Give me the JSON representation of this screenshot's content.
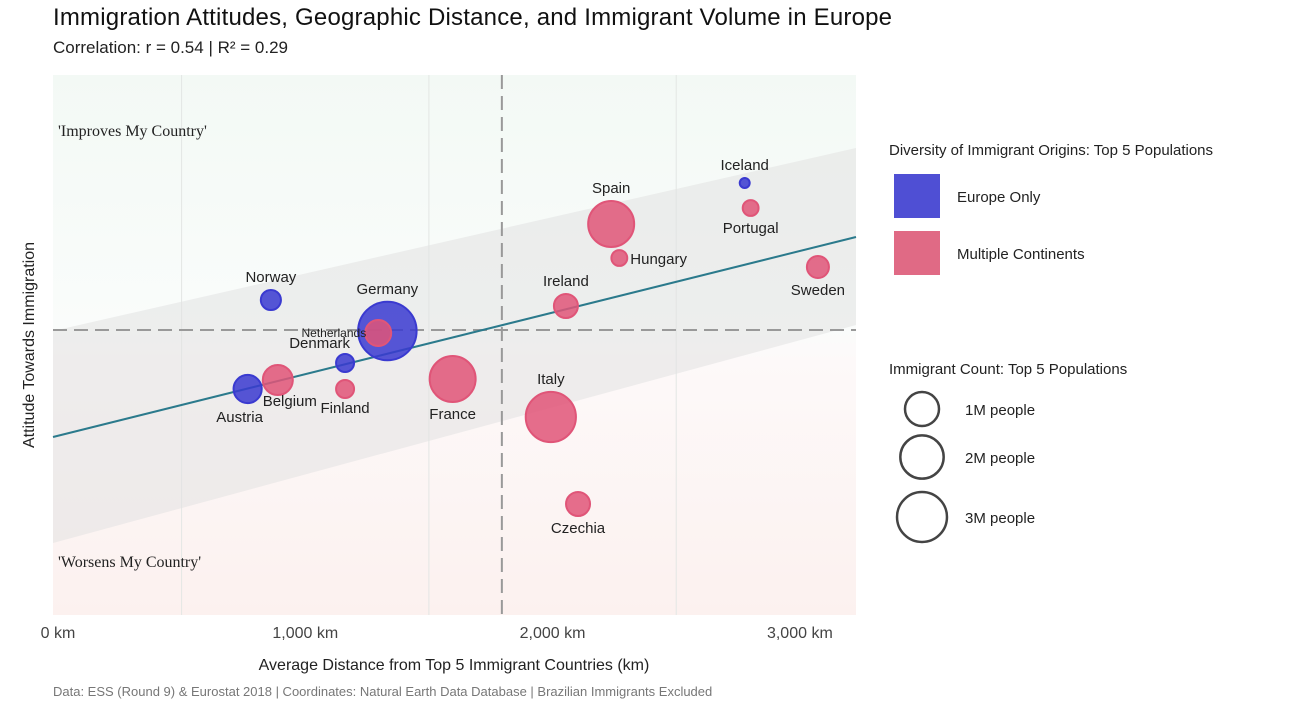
{
  "header": {
    "title": "Immigration Attitudes, Geographic Distance, and Immigrant Volume in Europe",
    "subtitle": "Correlation: r = 0.54 | R² = 0.29"
  },
  "chart_data": {
    "type": "scatter",
    "title": "Immigration Attitudes, Geographic Distance, and Immigrant Volume in Europe",
    "subtitle": "Correlation: r = 0.54 | R² = 0.29",
    "xlabel": "Average Distance from Top 5 Immigrant Countries (km)",
    "ylabel": "Attitude Towards Immigration",
    "xlim": [
      -20,
      3227
    ],
    "ylim": [
      -2.85,
      2.55
    ],
    "x_ticks": [
      {
        "value": 0,
        "label": "0 km"
      },
      {
        "value": 1000,
        "label": "1,000 km"
      },
      {
        "value": 2000,
        "label": "2,000 km"
      },
      {
        "value": 3000,
        "label": "3,000 km"
      }
    ],
    "x_minor_grid": [
      500,
      1500,
      2500
    ],
    "grid": true,
    "reference_lines": {
      "x_mean": 1795,
      "y_mean": 0
    },
    "quadrant_labels": {
      "top": "'Improves My Country'",
      "bottom": "'Worsens My Country'"
    },
    "regression": {
      "x": [
        -20,
        3227
      ],
      "y": [
        -1.07,
        0.93
      ],
      "ci_lower": [
        -2.13,
        0.05
      ],
      "ci_upper": [
        -0.01,
        1.82
      ],
      "color": "#2b7a8c"
    },
    "groups": {
      "europe": {
        "label": "Europe Only",
        "color": "#3a3ad0"
      },
      "multi": {
        "label": "Multiple Continents",
        "color": "#e05578"
      }
    },
    "points": [
      {
        "country": "Norway",
        "x": 861,
        "y": 0.3,
        "size_m": 0.45,
        "group": "europe",
        "label_pos": "top"
      },
      {
        "country": "Germany",
        "x": 1332,
        "y": -0.01,
        "size_m": 3.8,
        "group": "europe",
        "label_pos": "top"
      },
      {
        "country": "Netherlands",
        "x": 1295,
        "y": -0.03,
        "size_m": 0.75,
        "group": "multi",
        "label_pos": "left-small"
      },
      {
        "country": "Denmark",
        "x": 1161,
        "y": -0.33,
        "size_m": 0.36,
        "group": "europe",
        "label_pos": "top-left"
      },
      {
        "country": "Austria",
        "x": 767,
        "y": -0.59,
        "size_m": 0.88,
        "group": "europe",
        "label_pos": "bottom"
      },
      {
        "country": "Belgium",
        "x": 889,
        "y": -0.5,
        "size_m": 1.0,
        "group": "multi",
        "label_pos": "bottom"
      },
      {
        "country": "Finland",
        "x": 1161,
        "y": -0.59,
        "size_m": 0.36,
        "group": "multi",
        "label_pos": "bottom"
      },
      {
        "country": "France",
        "x": 1596,
        "y": -0.49,
        "size_m": 2.35,
        "group": "multi",
        "label_pos": "bottom"
      },
      {
        "country": "Italy",
        "x": 1993,
        "y": -0.87,
        "size_m": 2.8,
        "group": "multi",
        "label_pos": "top"
      },
      {
        "country": "Czechia",
        "x": 2103,
        "y": -1.74,
        "size_m": 0.64,
        "group": "multi",
        "label_pos": "bottom"
      },
      {
        "country": "Spain",
        "x": 2237,
        "y": 1.06,
        "size_m": 2.35,
        "group": "multi",
        "label_pos": "top"
      },
      {
        "country": "Hungary",
        "x": 2270,
        "y": 0.72,
        "size_m": 0.28,
        "group": "multi",
        "label_pos": "right"
      },
      {
        "country": "Ireland",
        "x": 2054,
        "y": 0.24,
        "size_m": 0.64,
        "group": "multi",
        "label_pos": "top"
      },
      {
        "country": "Iceland",
        "x": 2777,
        "y": 1.47,
        "size_m": 0.11,
        "group": "europe",
        "label_pos": "top"
      },
      {
        "country": "Portugal",
        "x": 2801,
        "y": 1.22,
        "size_m": 0.28,
        "group": "multi",
        "label_pos": "bottom"
      },
      {
        "country": "Sweden",
        "x": 3073,
        "y": 0.63,
        "size_m": 0.54,
        "group": "multi",
        "label_pos": "bottom"
      }
    ],
    "legend": {
      "color_title": "Diversity of Immigrant Origins: Top 5 Populations",
      "color_items": [
        {
          "label": "Europe Only",
          "color": "#4f4fd4"
        },
        {
          "label": "Multiple Continents",
          "color": "#e06a85"
        }
      ],
      "size_title": "Immigrant Count: Top 5 Populations",
      "size_items": [
        {
          "label": "1M people",
          "value_m": 1
        },
        {
          "label": "2M people",
          "value_m": 2
        },
        {
          "label": "3M people",
          "value_m": 3
        }
      ],
      "placement": "right"
    },
    "caption": "Data: ESS (Round 9) & Eurostat 2018 | Coordinates: Natural Earth Data Database | Brazilian Immigrants Excluded"
  }
}
